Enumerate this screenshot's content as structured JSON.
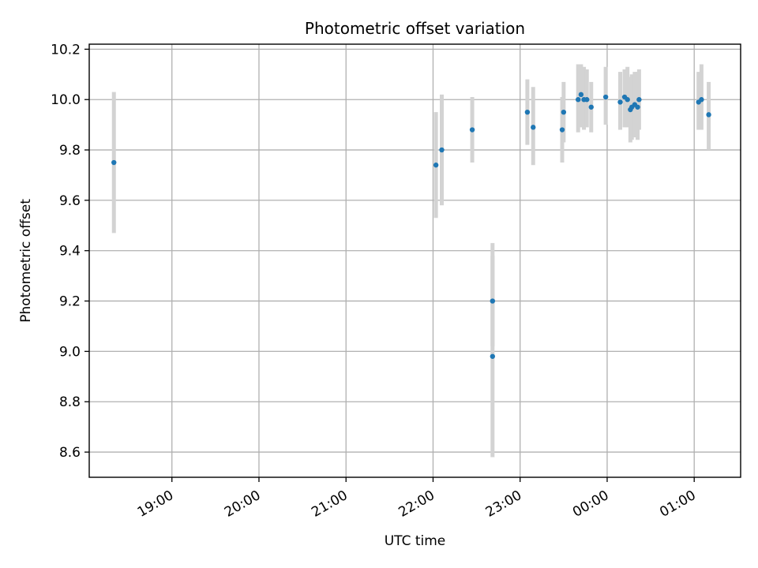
{
  "chart_data": {
    "type": "scatter",
    "title": "Photometric offset variation",
    "xlabel": "UTC time",
    "ylabel": "Photometric offset",
    "x_unit": "UTC time (HH:MM)",
    "xlim": [
      "18:03",
      "01:32"
    ],
    "ylim": [
      8.5,
      10.22
    ],
    "x_ticks": [
      "19:00",
      "20:00",
      "21:00",
      "22:00",
      "23:00",
      "00:00",
      "01:00"
    ],
    "y_ticks": [
      "8.6",
      "8.8",
      "9.0",
      "9.2",
      "9.4",
      "9.6",
      "9.8",
      "10.0",
      "10.2"
    ],
    "grid": true,
    "legend": "none",
    "marker_color": "#1f77b4",
    "errorbar_color": "#d3d3d3",
    "points": [
      {
        "x": "18:20",
        "y": 9.75,
        "ylow": 9.47,
        "yhigh": 10.03
      },
      {
        "x": "22:02",
        "y": 9.74,
        "ylow": 9.53,
        "yhigh": 9.95
      },
      {
        "x": "22:06",
        "y": 9.8,
        "ylow": 9.58,
        "yhigh": 10.02
      },
      {
        "x": "22:27",
        "y": 9.88,
        "ylow": 9.75,
        "yhigh": 10.01
      },
      {
        "x": "22:41",
        "y": 9.2,
        "ylow": 9.02,
        "yhigh": 9.43
      },
      {
        "x": "22:41",
        "y": 8.98,
        "ylow": 8.58,
        "yhigh": 9.38
      },
      {
        "x": "23:05",
        "y": 9.95,
        "ylow": 9.82,
        "yhigh": 10.08
      },
      {
        "x": "23:09",
        "y": 9.89,
        "ylow": 9.74,
        "yhigh": 10.05
      },
      {
        "x": "23:29",
        "y": 9.88,
        "ylow": 9.75,
        "yhigh": 10.01
      },
      {
        "x": "23:30",
        "y": 9.95,
        "ylow": 9.83,
        "yhigh": 10.07
      },
      {
        "x": "23:40",
        "y": 10.0,
        "ylow": 9.87,
        "yhigh": 10.14
      },
      {
        "x": "23:42",
        "y": 10.02,
        "ylow": 9.89,
        "yhigh": 10.14
      },
      {
        "x": "23:44",
        "y": 10.0,
        "ylow": 9.88,
        "yhigh": 10.13
      },
      {
        "x": "23:46",
        "y": 10.0,
        "ylow": 9.89,
        "yhigh": 10.12
      },
      {
        "x": "23:49",
        "y": 9.97,
        "ylow": 9.87,
        "yhigh": 10.07
      },
      {
        "x": "23:59",
        "y": 10.01,
        "ylow": 9.9,
        "yhigh": 10.13
      },
      {
        "x": "00:09",
        "y": 9.99,
        "ylow": 9.88,
        "yhigh": 10.11
      },
      {
        "x": "00:12",
        "y": 10.01,
        "ylow": 9.89,
        "yhigh": 10.12
      },
      {
        "x": "00:14",
        "y": 10.0,
        "ylow": 9.89,
        "yhigh": 10.13
      },
      {
        "x": "00:16",
        "y": 9.96,
        "ylow": 9.83,
        "yhigh": 10.09
      },
      {
        "x": "00:17",
        "y": 9.97,
        "ylow": 9.84,
        "yhigh": 10.1
      },
      {
        "x": "00:19",
        "y": 9.98,
        "ylow": 9.85,
        "yhigh": 10.11
      },
      {
        "x": "00:21",
        "y": 9.97,
        "ylow": 9.84,
        "yhigh": 10.11
      },
      {
        "x": "00:22",
        "y": 10.0,
        "ylow": 9.88,
        "yhigh": 10.12
      },
      {
        "x": "01:03",
        "y": 9.99,
        "ylow": 9.88,
        "yhigh": 10.11
      },
      {
        "x": "01:05",
        "y": 10.0,
        "ylow": 9.88,
        "yhigh": 10.14
      },
      {
        "x": "01:10",
        "y": 9.94,
        "ylow": 9.8,
        "yhigh": 10.07
      }
    ]
  }
}
